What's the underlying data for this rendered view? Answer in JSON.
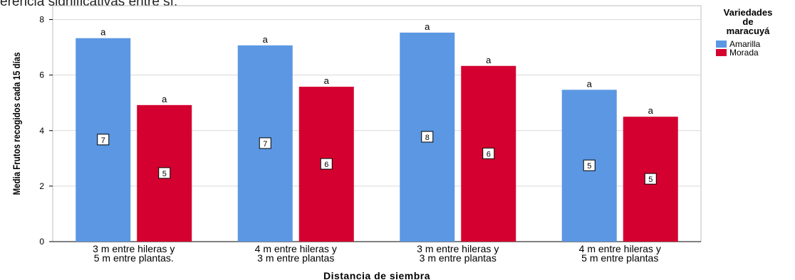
{
  "top_caption": "erencia significativas entre sí.",
  "chart_data": {
    "type": "bar",
    "categories": [
      [
        "3 m entre hileras y",
        "5 m entre plantas."
      ],
      [
        "4 m entre hileras y",
        "3 m entre plantas"
      ],
      [
        "3 m entre hileras y",
        "3 m entre plantas"
      ],
      [
        "4 m entre hileras y",
        "5 m entre plantas"
      ]
    ],
    "series": [
      {
        "name": "Amarilla",
        "color": "#5b97e3",
        "values": [
          7.33,
          7.07,
          7.53,
          5.47
        ],
        "box_labels": [
          "7",
          "7",
          "8",
          "5"
        ],
        "letters": [
          "a",
          "a",
          "a",
          "a"
        ]
      },
      {
        "name": "Morada",
        "color": "#d4002f",
        "values": [
          4.92,
          5.58,
          6.33,
          4.5
        ],
        "box_labels": [
          "5",
          "6",
          "6",
          "5"
        ],
        "letters": [
          "a",
          "a",
          "a",
          "a"
        ]
      }
    ],
    "xlabel": "Distancia de siembra",
    "ylabel": "Media Frutos recogidos cada 15 días",
    "ylim": [
      0,
      8.5
    ],
    "yticks": [
      0,
      2,
      4,
      6,
      8
    ],
    "grid": true,
    "legend": {
      "title_lines": [
        "Variedades",
        "de",
        "maracuyá"
      ],
      "placement": "right"
    }
  }
}
